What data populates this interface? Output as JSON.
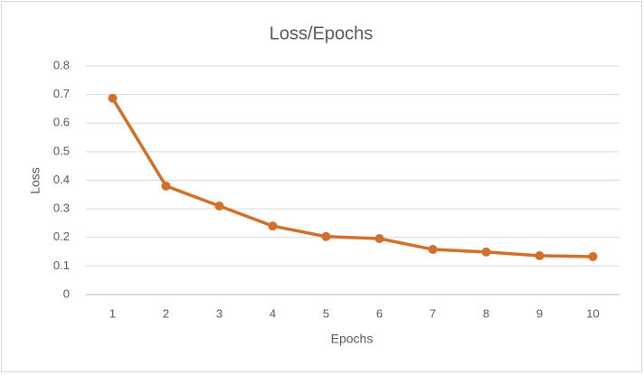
{
  "chart_data": {
    "type": "line",
    "title": "Loss/Epochs",
    "x_label": "Epochs",
    "y_label": "Loss",
    "categories": [
      "1",
      "2",
      "3",
      "4",
      "5",
      "6",
      "7",
      "8",
      "9",
      "10"
    ],
    "series": [
      {
        "name": "Loss",
        "color": "#d0702a",
        "values": [
          0.687,
          0.38,
          0.31,
          0.24,
          0.203,
          0.196,
          0.158,
          0.149,
          0.136,
          0.133
        ]
      }
    ],
    "ylim": [
      0,
      0.8
    ],
    "yticks": [
      0,
      0.1,
      0.2,
      0.3,
      0.4,
      0.5,
      0.6,
      0.7,
      0.8
    ],
    "grid": true
  }
}
